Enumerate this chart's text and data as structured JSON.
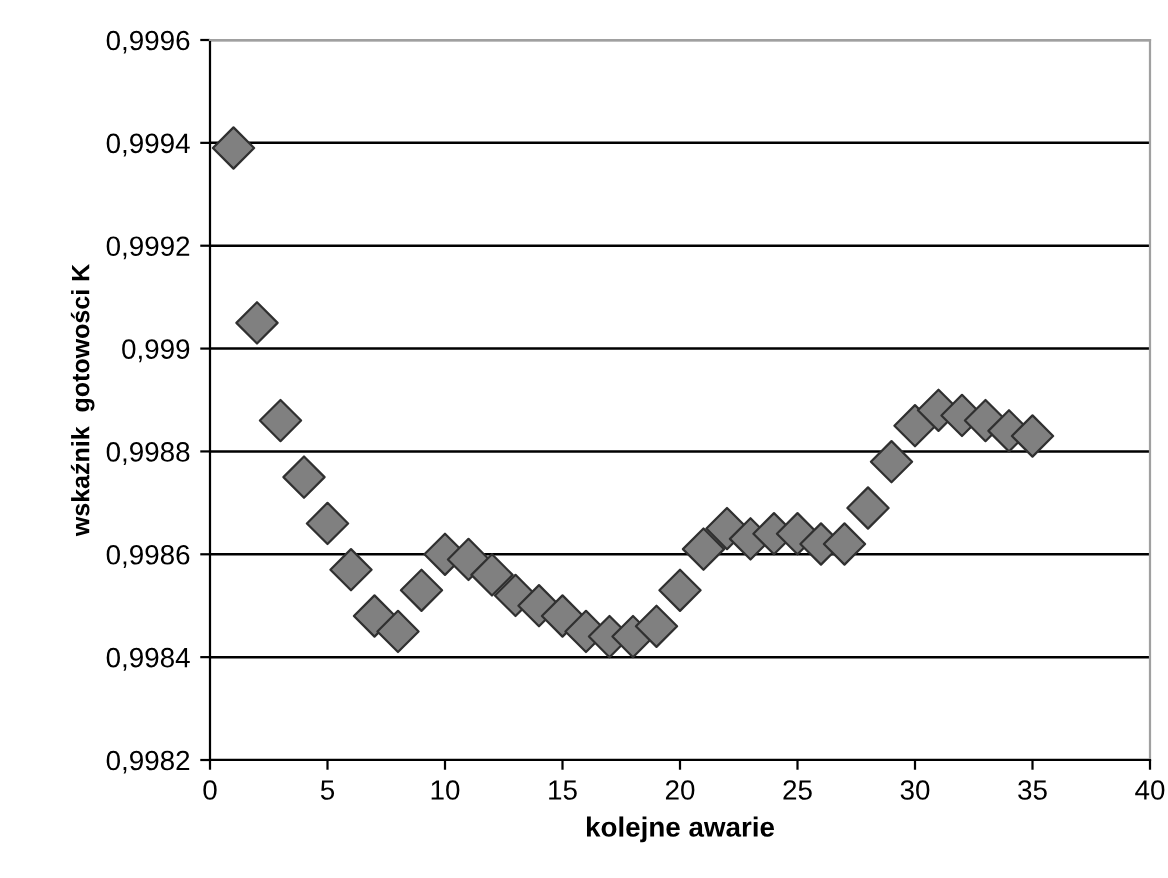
{
  "chart_data": {
    "type": "scatter",
    "xlabel": "kolejne awarie",
    "ylabel": "wskaźnik  gotowości K",
    "x": [
      1,
      2,
      3,
      4,
      5,
      6,
      7,
      8,
      9,
      10,
      11,
      12,
      13,
      14,
      15,
      16,
      17,
      18,
      19,
      20,
      21,
      22,
      23,
      24,
      25,
      26,
      27,
      28,
      29,
      30,
      31,
      32,
      33,
      34,
      35
    ],
    "series": [
      {
        "color": "#808080",
        "values": [
          0.99939,
          0.99905,
          0.99886,
          0.99875,
          0.99866,
          0.99857,
          0.99848,
          0.99845,
          0.99853,
          0.9986,
          0.99859,
          0.99856,
          0.99852,
          0.9985,
          0.99848,
          0.99845,
          0.99844,
          0.99844,
          0.99846,
          0.99853,
          0.99861,
          0.99865,
          0.99863,
          0.99864,
          0.99864,
          0.99862,
          0.99862,
          0.99869,
          0.99878,
          0.99885,
          0.99888,
          0.99887,
          0.99886,
          0.99884,
          0.99883
        ]
      }
    ],
    "xlim": [
      0,
      40
    ],
    "xticks": [
      0,
      5,
      10,
      15,
      20,
      25,
      30,
      35,
      40
    ],
    "ylim": [
      0.9982,
      0.9996
    ],
    "yticks": [
      {
        "value": 0.9982,
        "label": "0,9982"
      },
      {
        "value": 0.9984,
        "label": "0,9984"
      },
      {
        "value": 0.9986,
        "label": "0,9986"
      },
      {
        "value": 0.9988,
        "label": "0,9988"
      },
      {
        "value": 0.999,
        "label": "0,999"
      },
      {
        "value": 0.9992,
        "label": "0,9992"
      },
      {
        "value": 0.9994,
        "label": "0,9994"
      },
      {
        "value": 0.9996,
        "label": "0,9996"
      }
    ],
    "grid": "y",
    "marker": "diamond",
    "legend": false
  }
}
